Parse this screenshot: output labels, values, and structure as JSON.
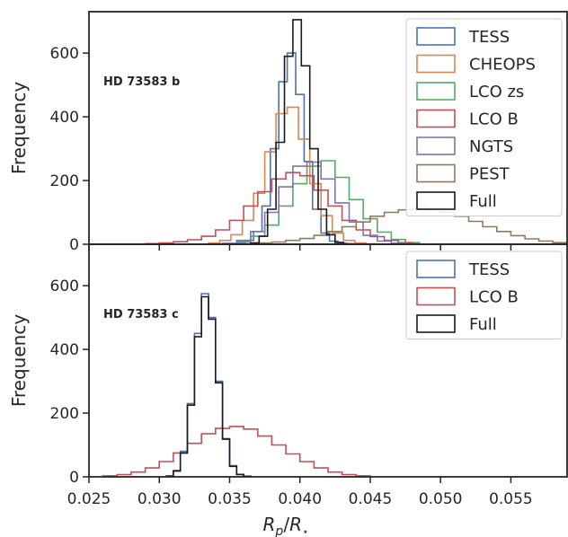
{
  "chart_data": [
    {
      "type": "histogram",
      "annotation": "HD 73583 b",
      "ylabel": "Frequency",
      "xlabel": "",
      "xlim": [
        0.025,
        0.059
      ],
      "ylim": [
        0,
        730
      ],
      "yticks": [
        0,
        200,
        400,
        600
      ],
      "xticks": [
        0.025,
        0.03,
        0.035,
        0.04,
        0.045,
        0.05,
        0.055
      ],
      "legend_position": "upper-right",
      "grid": false,
      "series": [
        {
          "name": "TESS",
          "color": "#4c72b0",
          "bins": [
            0.0355,
            0.0361,
            0.0367,
            0.0373,
            0.0379,
            0.0385,
            0.0391,
            0.0397,
            0.0403,
            0.0409,
            0.0415,
            0.0421,
            0.0427,
            0.0433,
            0.0439
          ],
          "counts": [
            3,
            12,
            40,
            120,
            300,
            510,
            600,
            470,
            260,
            110,
            35,
            10,
            3,
            1
          ]
        },
        {
          "name": "CHEOPS",
          "color": "#dd8452",
          "bins": [
            0.0335,
            0.0343,
            0.0351,
            0.0359,
            0.0367,
            0.0375,
            0.0383,
            0.0391,
            0.0399,
            0.0407,
            0.0415,
            0.0423,
            0.0431,
            0.0439,
            0.0447,
            0.0455
          ],
          "counts": [
            4,
            12,
            30,
            75,
            160,
            290,
            410,
            430,
            330,
            190,
            90,
            35,
            12,
            4,
            1
          ]
        },
        {
          "name": "LCO zs",
          "color": "#55a868",
          "bins": [
            0.0345,
            0.0355,
            0.0365,
            0.0375,
            0.0385,
            0.0395,
            0.0405,
            0.0415,
            0.0425,
            0.0435,
            0.0445,
            0.0455,
            0.0465,
            0.0475,
            0.0485
          ],
          "counts": [
            2,
            8,
            25,
            60,
            120,
            190,
            245,
            262,
            210,
            140,
            80,
            38,
            15,
            5
          ]
        },
        {
          "name": "LCO B",
          "color": "#c44e52",
          "bins": [
            0.029,
            0.03,
            0.031,
            0.032,
            0.033,
            0.034,
            0.035,
            0.036,
            0.037,
            0.038,
            0.039,
            0.04,
            0.041,
            0.042,
            0.043,
            0.044,
            0.045,
            0.046,
            0.047,
            0.048
          ],
          "counts": [
            2,
            4,
            8,
            14,
            25,
            45,
            75,
            120,
            165,
            205,
            225,
            215,
            170,
            120,
            75,
            45,
            24,
            12,
            5
          ]
        },
        {
          "name": "NGTS",
          "color": "#8172b3",
          "bins": [
            0.0345,
            0.0355,
            0.0365,
            0.0375,
            0.0385,
            0.0395,
            0.0405,
            0.0415,
            0.0425,
            0.0435,
            0.0445,
            0.0455,
            0.0465,
            0.0475
          ],
          "counts": [
            3,
            12,
            40,
            100,
            180,
            245,
            258,
            205,
            130,
            70,
            28,
            10,
            3
          ]
        },
        {
          "name": "PEST",
          "color": "#937860",
          "bins": [
            0.036,
            0.037,
            0.038,
            0.039,
            0.04,
            0.041,
            0.042,
            0.043,
            0.044,
            0.045,
            0.046,
            0.047,
            0.048,
            0.049,
            0.05,
            0.051,
            0.052,
            0.053,
            0.054,
            0.055,
            0.056,
            0.057,
            0.058,
            0.059
          ],
          "counts": [
            2,
            4,
            7,
            12,
            18,
            28,
            40,
            55,
            70,
            88,
            100,
            108,
            112,
            110,
            100,
            88,
            72,
            55,
            40,
            27,
            17,
            10,
            5
          ]
        },
        {
          "name": "Full",
          "color": "#1a1a1a",
          "bins": [
            0.0365,
            0.0371,
            0.0377,
            0.0383,
            0.0389,
            0.0395,
            0.0401,
            0.0407,
            0.0413,
            0.0419,
            0.0425,
            0.0431,
            0.0437
          ],
          "counts": [
            4,
            25,
            110,
            320,
            590,
            705,
            560,
            300,
            110,
            30,
            6,
            1
          ]
        }
      ]
    },
    {
      "type": "histogram",
      "annotation": "HD 73583 c",
      "ylabel": "Frequency",
      "xlabel": "R_p/R_⋆",
      "xlim": [
        0.025,
        0.059
      ],
      "ylim": [
        0,
        730
      ],
      "yticks": [
        0,
        200,
        400,
        600
      ],
      "xticks": [
        0.025,
        0.03,
        0.035,
        0.04,
        0.045,
        0.05,
        0.055
      ],
      "xticklabels": [
        "0.025",
        "0.030",
        "0.035",
        "0.040",
        "0.045",
        "0.050",
        "0.055"
      ],
      "legend_position": "upper-right",
      "grid": false,
      "series": [
        {
          "name": "TESS",
          "color": "#4c72b0",
          "bins": [
            0.0305,
            0.031,
            0.0315,
            0.032,
            0.0325,
            0.033,
            0.0335,
            0.034,
            0.0345,
            0.035,
            0.0355,
            0.036,
            0.0365
          ],
          "counts": [
            3,
            20,
            80,
            230,
            450,
            575,
            500,
            300,
            120,
            35,
            8,
            2
          ]
        },
        {
          "name": "LCO B",
          "color": "#c44e52",
          "bins": [
            0.026,
            0.027,
            0.028,
            0.029,
            0.03,
            0.031,
            0.032,
            0.033,
            0.034,
            0.035,
            0.036,
            0.037,
            0.038,
            0.039,
            0.04,
            0.041,
            0.042,
            0.043,
            0.044,
            0.045
          ],
          "counts": [
            3,
            7,
            15,
            28,
            48,
            75,
            105,
            135,
            152,
            158,
            150,
            128,
            100,
            72,
            48,
            28,
            15,
            7,
            3
          ]
        },
        {
          "name": "Full",
          "color": "#1a1a1a",
          "bins": [
            0.0305,
            0.031,
            0.0315,
            0.032,
            0.0325,
            0.033,
            0.0335,
            0.034,
            0.0345,
            0.035,
            0.0355,
            0.036,
            0.0365
          ],
          "counts": [
            2,
            18,
            75,
            225,
            440,
            565,
            495,
            295,
            118,
            33,
            7,
            2
          ]
        }
      ]
    }
  ]
}
